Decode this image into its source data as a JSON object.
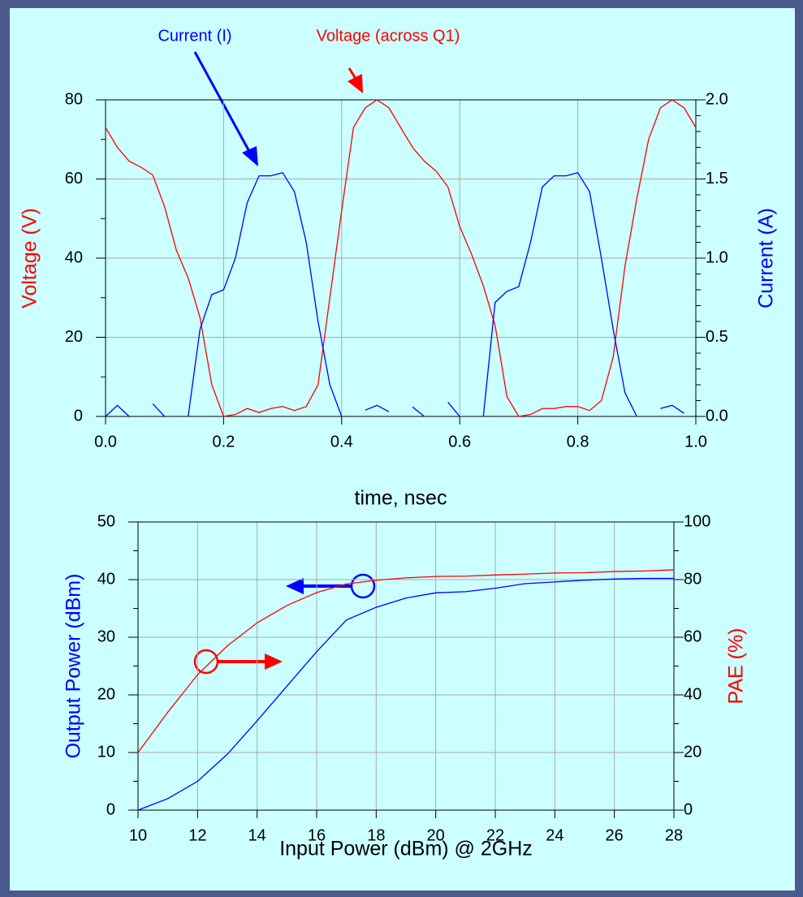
{
  "chart_data": [
    {
      "type": "line",
      "annotations": [
        "Current (I)",
        "Voltage (across Q1)"
      ],
      "xlabel": "time, nsec",
      "ylabel": "Voltage (V)",
      "y2label": "Current (A)",
      "x": [
        0,
        0.02,
        0.04,
        0.06,
        0.08,
        0.1,
        0.12,
        0.14,
        0.16,
        0.18,
        0.2,
        0.22,
        0.24,
        0.26,
        0.28,
        0.3,
        0.32,
        0.34,
        0.36,
        0.38,
        0.4,
        0.42,
        0.44,
        0.46,
        0.48,
        0.5,
        0.52,
        0.54,
        0.56,
        0.58,
        0.6,
        0.62,
        0.64,
        0.66,
        0.68,
        0.7,
        0.72,
        0.74,
        0.76,
        0.78,
        0.8,
        0.82,
        0.84,
        0.86,
        0.88,
        0.9,
        0.92,
        0.94,
        0.96,
        0.98,
        1.0
      ],
      "series": [
        {
          "name": "Voltage",
          "color": "#ff0000",
          "axis": "y",
          "values": [
            73,
            68,
            64.5,
            63,
            61,
            53,
            42,
            35,
            25,
            8,
            0,
            0.5,
            2,
            1,
            2,
            2.5,
            1.5,
            2.5,
            8,
            30,
            52,
            73,
            78,
            80,
            78,
            73,
            68,
            64.5,
            62,
            58,
            48,
            41,
            33,
            23,
            5,
            0,
            0.5,
            2,
            2,
            2.5,
            2.5,
            1.5,
            4,
            15,
            38,
            55,
            70,
            78,
            80,
            78,
            73
          ]
        },
        {
          "name": "Current",
          "color": "#0000ff",
          "axis": "y2",
          "values": [
            0,
            0.07,
            0,
            null,
            0.08,
            0,
            null,
            0,
            0.55,
            0.77,
            0.8,
            1.0,
            1.35,
            1.52,
            1.52,
            1.54,
            1.42,
            1.1,
            0.6,
            0.2,
            0,
            null,
            0.04,
            0.07,
            0.03,
            null,
            0.06,
            0,
            null,
            0.09,
            0,
            null,
            0,
            0.72,
            0.79,
            0.82,
            1.1,
            1.45,
            1.52,
            1.52,
            1.54,
            1.42,
            1.0,
            0.55,
            0.15,
            0,
            null,
            0.05,
            0.07,
            0.02,
            null
          ]
        }
      ],
      "xlim": [
        0,
        1
      ],
      "xticks": [
        {
          "value": 0,
          "label": "0.0"
        },
        0.2,
        0.4,
        0.6,
        0.8,
        {
          "value": 1,
          "label": "1.0"
        }
      ],
      "ylim": [
        0,
        80
      ],
      "yticks": [
        0,
        20,
        40,
        60,
        80
      ],
      "y2lim": [
        0,
        2
      ],
      "y2ticks": [
        {
          "value": 0,
          "label": "0.0"
        },
        0.5,
        {
          "value": 1,
          "label": "1.0"
        },
        1.5,
        {
          "value": 2,
          "label": "2.0"
        }
      ],
      "grid": true
    },
    {
      "type": "line",
      "xlabel": "Input Power (dBm) @ 2GHz",
      "ylabel": "Output Power (dBm)",
      "y2label": "PAE (%)",
      "x": [
        10,
        11,
        12,
        13,
        14,
        15,
        16,
        17,
        18,
        19,
        20,
        21,
        22,
        23,
        24,
        25,
        26,
        27,
        28
      ],
      "series": [
        {
          "name": "Output Power",
          "color": "#0000ff",
          "axis": "y",
          "values": [
            0,
            2,
            5,
            9.7,
            15.5,
            21.5,
            27.5,
            33,
            35.2,
            36.8,
            37.7,
            37.9,
            38.5,
            39.3,
            39.6,
            39.9,
            40.1,
            40.2,
            40.2
          ]
        },
        {
          "name": "PAE",
          "color": "#ff0000",
          "axis": "y2",
          "values": [
            20,
            34,
            47,
            57,
            65,
            71,
            75.5,
            78.5,
            79.8,
            80.6,
            81.1,
            81.2,
            81.6,
            81.9,
            82.3,
            82.4,
            82.8,
            83,
            83.4
          ]
        }
      ],
      "xlim": [
        10,
        28
      ],
      "xticks": [
        10,
        12,
        14,
        16,
        18,
        20,
        22,
        24,
        26,
        28
      ],
      "ylim": [
        0,
        50
      ],
      "yticks": [
        0,
        10,
        20,
        30,
        40,
        50
      ],
      "y2lim": [
        0,
        100
      ],
      "y2ticks": [
        0,
        20,
        40,
        60,
        80,
        100
      ],
      "grid": true
    }
  ]
}
